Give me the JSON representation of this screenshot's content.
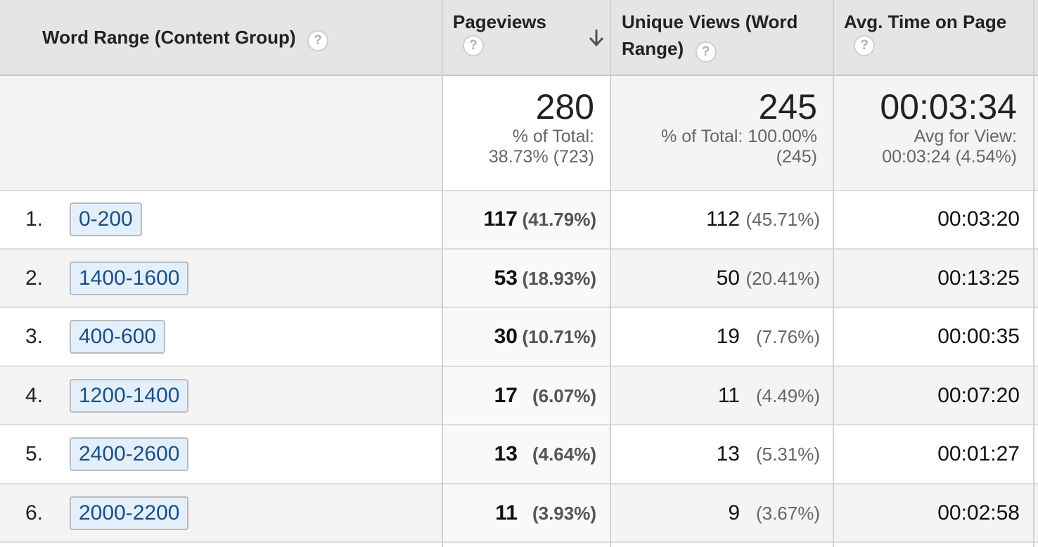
{
  "header": {
    "col_dimension": "Word Range (Content Group)",
    "col_pageviews": "Pageviews",
    "col_unique_line1": "Unique Views (Word",
    "col_unique_line2": "Range)",
    "col_avgtime": "Avg. Time on Page",
    "help_glyph": "?",
    "sort_icon": "arrow-down-icon"
  },
  "totals": {
    "pageviews": "280",
    "pageviews_pct_line1": "% of Total:",
    "pageviews_pct_line2": "38.73% (723)",
    "unique": "245",
    "unique_pct_line1": "% of Total: 100.00%",
    "unique_pct_line2": "(245)",
    "avgtime": "00:03:34",
    "avgtime_line1": "Avg for View:",
    "avgtime_line2": "00:03:24 (4.54%)"
  },
  "rows": [
    {
      "num": "1.",
      "range": "0-200",
      "pageviews": "117",
      "pageviews_pct": "(41.79%)",
      "unique": "112",
      "unique_pct": "(45.71%)",
      "avgtime": "00:03:20"
    },
    {
      "num": "2.",
      "range": "1400-1600",
      "pageviews": "53",
      "pageviews_pct": "(18.93%)",
      "unique": "50",
      "unique_pct": "(20.41%)",
      "avgtime": "00:13:25"
    },
    {
      "num": "3.",
      "range": "400-600",
      "pageviews": "30",
      "pageviews_pct": "(10.71%)",
      "unique": "19",
      "unique_pct": "(7.76%)",
      "avgtime": "00:00:35"
    },
    {
      "num": "4.",
      "range": "1200-1400",
      "pageviews": "17",
      "pageviews_pct": "(6.07%)",
      "unique": "11",
      "unique_pct": "(4.49%)",
      "avgtime": "00:07:20"
    },
    {
      "num": "5.",
      "range": "2400-2600",
      "pageviews": "13",
      "pageviews_pct": "(4.64%)",
      "unique": "13",
      "unique_pct": "(5.31%)",
      "avgtime": "00:01:27"
    },
    {
      "num": "6.",
      "range": "2000-2200",
      "pageviews": "11",
      "pageviews_pct": "(3.93%)",
      "unique": "9",
      "unique_pct": "(3.67%)",
      "avgtime": "00:02:58"
    }
  ],
  "colors": {
    "header_bg": "#e5e5e5",
    "chip_bg": "#e3f0fb",
    "chip_text": "#1a4f86"
  }
}
